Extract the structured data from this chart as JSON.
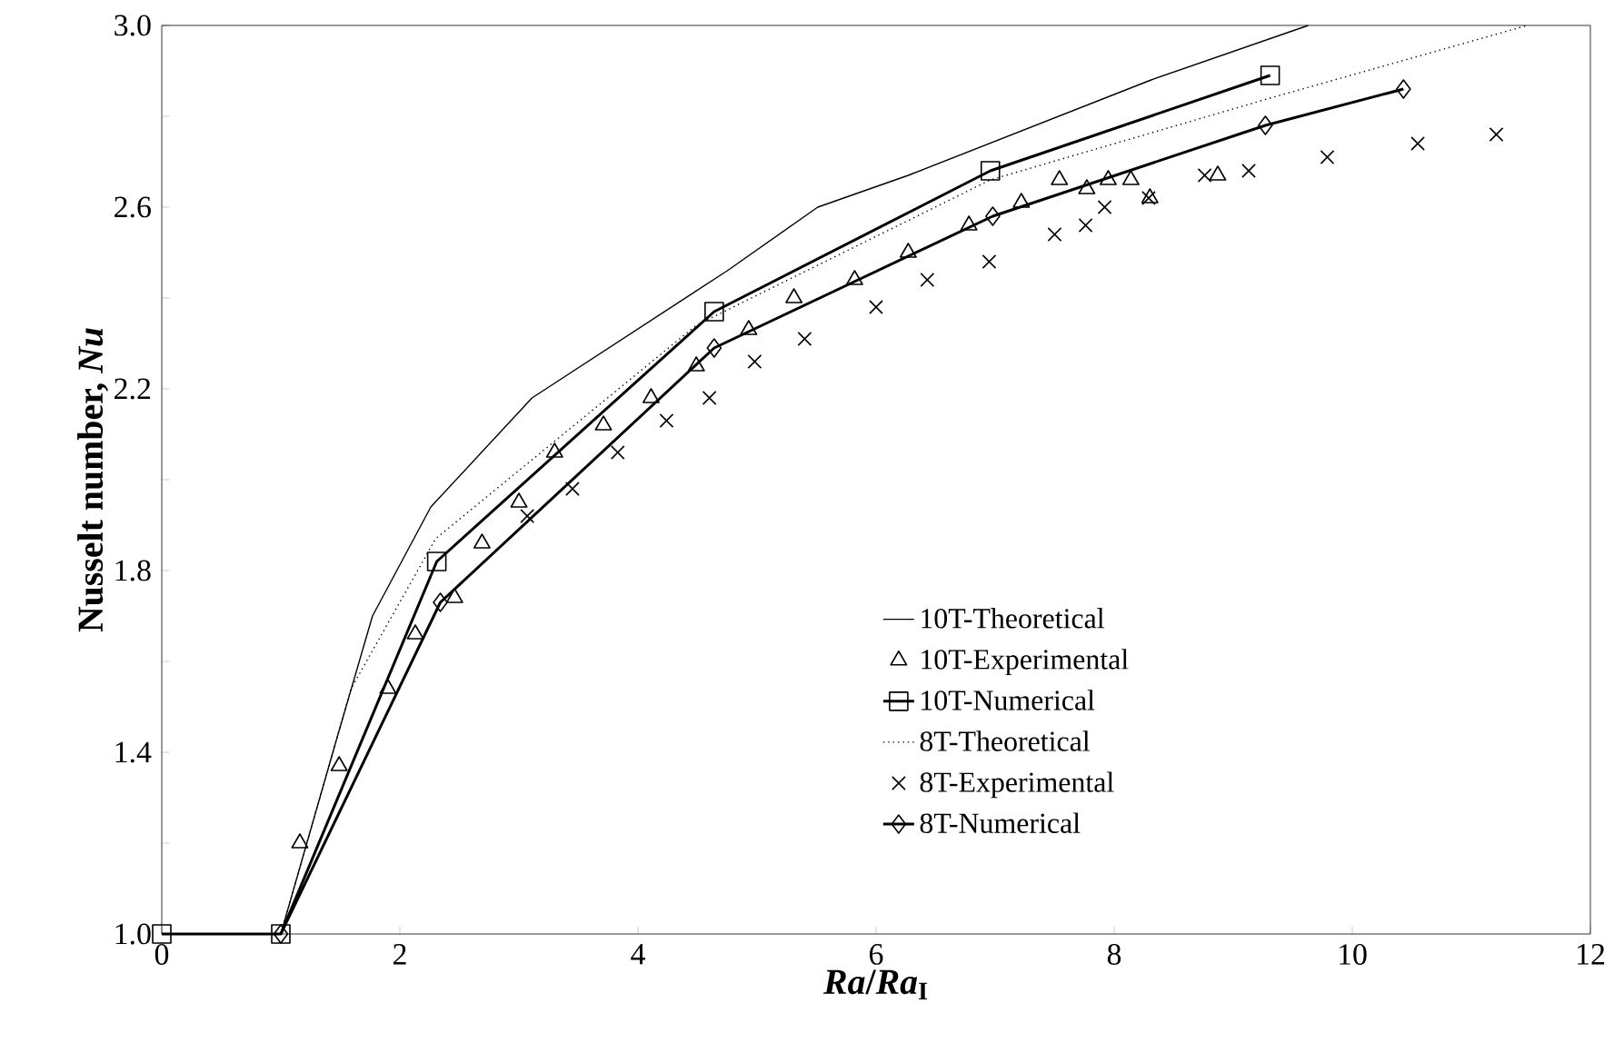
{
  "chart_data": {
    "type": "line",
    "xlabel": "*Ra*/*Ra*$_{I}$",
    "ylabel": "Nusselt number, *Nu*",
    "xlim": [
      0,
      12
    ],
    "xticks": [
      0,
      2,
      4,
      6,
      8,
      10,
      12
    ],
    "ylim": [
      1,
      3
    ],
    "yticks": [
      {
        "value": 1,
        "label": "1.0"
      },
      {
        "value": 1.2,
        "label": null
      },
      1.4,
      {
        "value": 1.6,
        "label": null
      },
      1.8,
      {
        "value": 2,
        "label": null
      },
      2.2,
      {
        "value": 2.4,
        "label": null
      },
      2.6,
      {
        "value": 2.8,
        "label": null
      },
      {
        "value": 3,
        "label": "3.0"
      }
    ],
    "grid": false,
    "legend": "bottom right",
    "series": [
      {
        "name": "10T-Theoretical",
        "color": "#000000",
        "type": "line",
        "marker": "none",
        "line_style": "solid",
        "x": [
          0,
          1,
          1.47,
          1.77,
          2.26,
          3.11,
          4.75,
          5.51,
          6.27,
          8.31,
          9.63
        ],
        "values": [
          1,
          1,
          1.43,
          1.7,
          1.94,
          2.18,
          2.46,
          2.6,
          2.67,
          2.88,
          3.0
        ]
      },
      {
        "name": "10T-Experimental",
        "color": "#000000",
        "type": "scatter",
        "marker": "triangle",
        "x": [
          1.16,
          1.49,
          1.9,
          2.13,
          2.46,
          2.69,
          3.0,
          3.3,
          3.71,
          4.11,
          4.49,
          4.93,
          5.31,
          5.82,
          6.27,
          6.78,
          7.22,
          7.54,
          7.77,
          7.95,
          8.14,
          8.3,
          8.87
        ],
        "values": [
          1.2,
          1.37,
          1.54,
          1.66,
          1.74,
          1.86,
          1.95,
          2.06,
          2.12,
          2.18,
          2.25,
          2.33,
          2.4,
          2.44,
          2.5,
          2.56,
          2.61,
          2.66,
          2.64,
          2.66,
          2.66,
          2.62,
          2.67
        ]
      },
      {
        "name": "10T-Numerical",
        "color": "#000000",
        "type": "line",
        "marker": "square",
        "line_style": "solid",
        "x": [
          0,
          1,
          2.31,
          4.64,
          6.96,
          9.31
        ],
        "values": [
          1,
          1,
          1.82,
          2.37,
          2.68,
          2.89
        ]
      },
      {
        "name": "8T-Theoretical",
        "color": "#000000",
        "type": "line",
        "marker": "none",
        "line_style": "dotted",
        "x": [
          0,
          1,
          1.59,
          2.3,
          4.49,
          6.96,
          9.31,
          11.47
        ],
        "values": [
          1,
          1,
          1.54,
          1.87,
          2.34,
          2.66,
          2.84,
          3.0
        ]
      },
      {
        "name": "8T-Experimental",
        "color": "#000000",
        "type": "scatter",
        "marker": "cross",
        "x": [
          3.07,
          3.45,
          3.83,
          4.24,
          4.6,
          4.98,
          5.4,
          6.0,
          6.43,
          6.95,
          7.5,
          7.76,
          7.92,
          8.29,
          8.76,
          9.13,
          9.79,
          10.55,
          11.21
        ],
        "values": [
          1.92,
          1.98,
          2.06,
          2.13,
          2.18,
          2.26,
          2.31,
          2.38,
          2.44,
          2.48,
          2.54,
          2.56,
          2.6,
          2.62,
          2.67,
          2.68,
          2.71,
          2.74,
          2.76
        ]
      },
      {
        "name": "8T-Numerical",
        "color": "#000000",
        "type": "line",
        "marker": "diamond",
        "line_style": "solid",
        "x": [
          1,
          2.34,
          4.64,
          6.98,
          9.27,
          10.43
        ],
        "values": [
          1,
          1.73,
          2.29,
          2.58,
          2.78,
          2.86
        ]
      }
    ]
  }
}
